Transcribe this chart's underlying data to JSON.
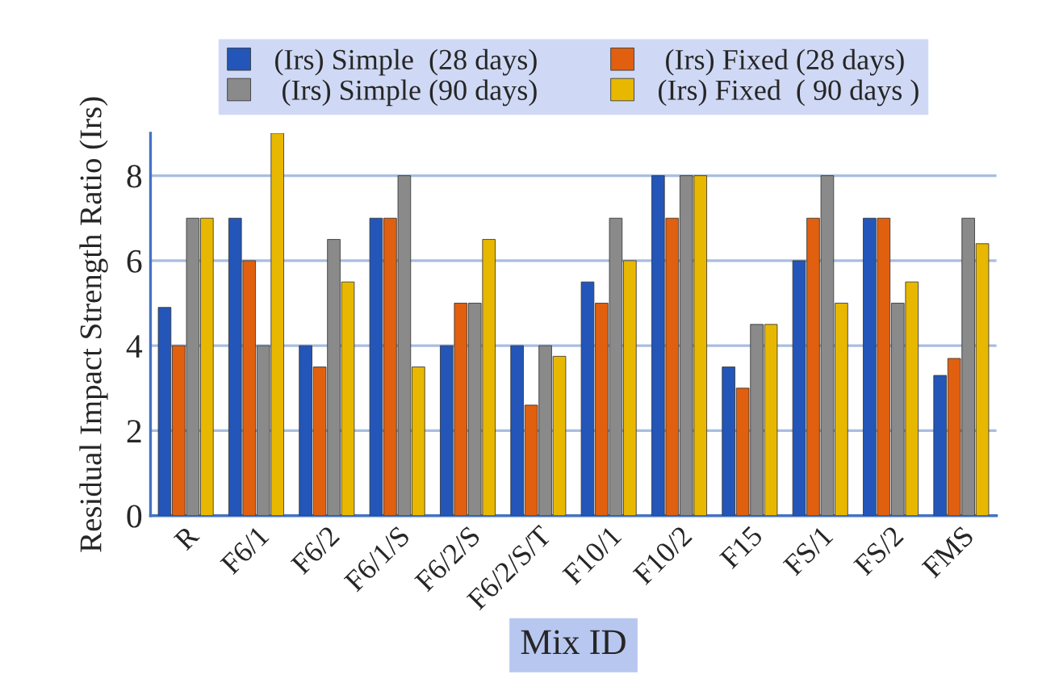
{
  "chart_data": {
    "type": "bar",
    "xlabel": "Mix ID",
    "ylabel": "Residual Impact Strength Ratio (Irs)",
    "categories": [
      "R",
      "F6/1",
      "F6/2",
      "F6/1/S",
      "F6/2/S",
      "F6/2/S/T",
      "F10/1",
      "F10/2",
      "F15",
      "FS/1",
      "FS/2",
      "FMS"
    ],
    "series": [
      {
        "name": "(Irs) Simple  (28 days)",
        "color": "#2356b8",
        "values": [
          4.9,
          7,
          4,
          7,
          4,
          4,
          5.5,
          8,
          3.5,
          6,
          7,
          3.3
        ]
      },
      {
        "name": " (Irs) Fixed (28 days)",
        "color": "#e0600f",
        "values": [
          4,
          6,
          3.5,
          7,
          5,
          2.6,
          5,
          7,
          3,
          7,
          7,
          3.7
        ]
      },
      {
        "name": " (Irs) Simple (90 days)",
        "color": "#8a8a8a",
        "values": [
          7,
          4,
          6.5,
          8,
          5,
          4,
          7,
          8,
          4.5,
          8,
          5,
          7
        ]
      },
      {
        "name": "(Irs) Fixed  ( 90 days )",
        "color": "#e8b800",
        "values": [
          7,
          9,
          5.5,
          3.5,
          6.5,
          3.75,
          6,
          8,
          4.5,
          5,
          5.5,
          6.4
        ]
      }
    ],
    "ylim": [
      0,
      9
    ],
    "yticks": [
      0,
      2,
      4,
      6,
      8
    ],
    "grid": "y",
    "legend": "top"
  }
}
